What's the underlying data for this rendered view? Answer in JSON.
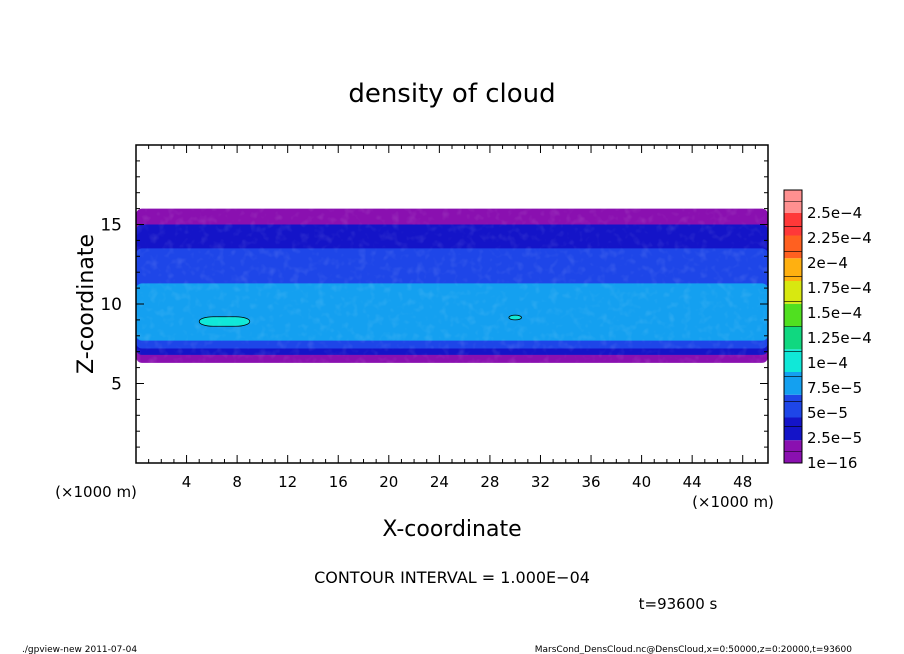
{
  "chart_data": {
    "type": "heatmap",
    "title": "density of cloud",
    "xlabel": "X-coordinate",
    "ylabel": "Z-coordinate",
    "x_unit": "(×1000 m)",
    "y_unit": "(×1000 m)",
    "xlim": [
      0,
      50
    ],
    "ylim": [
      0,
      20
    ],
    "x_ticks": [
      4,
      8,
      12,
      16,
      20,
      24,
      28,
      32,
      36,
      40,
      44,
      48
    ],
    "y_ticks": [
      5,
      10,
      15
    ],
    "colorbar": {
      "levels": [
        "1e−16",
        "2.5e−5",
        "5e−5",
        "7.5e−5",
        "1e−4",
        "1.25e−4",
        "1.5e−4",
        "1.75e−4",
        "2e−4",
        "2.25e−4",
        "2.5e−4"
      ],
      "colors": [
        "#8a10b0",
        "#1414c8",
        "#1e46e8",
        "#14a0f0",
        "#10e8d8",
        "#10d880",
        "#50e020",
        "#d8e810",
        "#ffb010",
        "#ff6020",
        "#ff3838",
        "#ff9090"
      ]
    },
    "regions": [
      {
        "level": 0,
        "x": [
          0,
          50
        ],
        "z": [
          6.3,
          16.0
        ]
      },
      {
        "level": 1,
        "x": [
          0,
          50
        ],
        "z": [
          6.8,
          15.0
        ]
      },
      {
        "level": 2,
        "x": [
          0,
          50
        ],
        "z": [
          7.2,
          13.5
        ]
      },
      {
        "level": 3,
        "x": [
          0,
          50
        ],
        "z": [
          7.7,
          11.3
        ]
      },
      {
        "level": 4,
        "x": [
          5,
          9
        ],
        "z": [
          8.6,
          9.2
        ]
      },
      {
        "level": 4,
        "x": [
          29.5,
          30.5
        ],
        "z": [
          9.0,
          9.3
        ]
      }
    ],
    "contour_interval": "CONTOUR INTERVAL = 1.000E−04",
    "time": "t=93600 s"
  },
  "footer": {
    "left": "./gpview-new 2011-07-04",
    "right": "MarsCond_DensCloud.nc@DensCloud,x=0:50000,z=0:20000,t=93600"
  }
}
